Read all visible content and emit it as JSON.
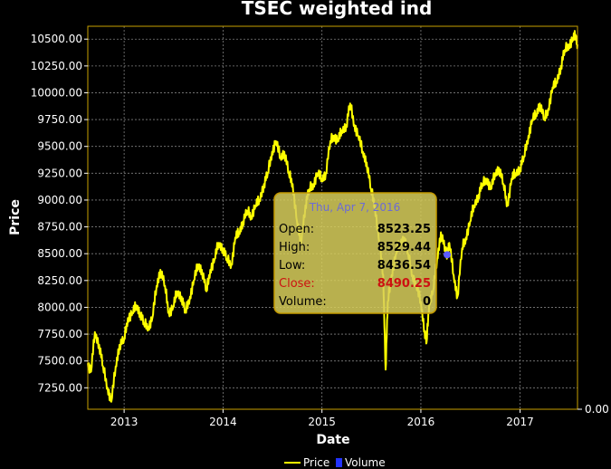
{
  "chart_data": {
    "type": "line",
    "title": "TSEC weighted ind",
    "xlabel": "Date",
    "ylabel": "Price",
    "secondary_axis_tick": "0.00",
    "x_ticks": [
      "2013",
      "2014",
      "2015",
      "2016",
      "2017"
    ],
    "y_ticks": [
      "7250.00",
      "7500.00",
      "7750.00",
      "8000.00",
      "8250.00",
      "8500.00",
      "8750.00",
      "9000.00",
      "9250.00",
      "9500.00",
      "9750.00",
      "10000.00",
      "10250.00",
      "10500.00"
    ],
    "xlim": [
      "2012-08-20",
      "2017-08-01"
    ],
    "ylim": [
      7050,
      10620
    ],
    "grid": true,
    "legend": "bottom",
    "series": [
      {
        "name": "Price",
        "color": "#ffff00",
        "points": [
          [
            "2012-08-20",
            7480
          ],
          [
            "2012-09-01",
            7400
          ],
          [
            "2012-09-15",
            7770
          ],
          [
            "2012-10-01",
            7650
          ],
          [
            "2012-10-15",
            7450
          ],
          [
            "2012-11-01",
            7250
          ],
          [
            "2012-11-15",
            7120
          ],
          [
            "2012-12-01",
            7450
          ],
          [
            "2012-12-15",
            7650
          ],
          [
            "2013-01-01",
            7700
          ],
          [
            "2013-01-15",
            7900
          ],
          [
            "2013-02-01",
            7950
          ],
          [
            "2013-02-15",
            8020
          ],
          [
            "2013-03-01",
            7950
          ],
          [
            "2013-03-15",
            7850
          ],
          [
            "2013-04-01",
            7820
          ],
          [
            "2013-04-15",
            7900
          ],
          [
            "2013-05-01",
            8200
          ],
          [
            "2013-05-15",
            8350
          ],
          [
            "2013-06-01",
            8200
          ],
          [
            "2013-06-15",
            7950
          ],
          [
            "2013-07-01",
            8000
          ],
          [
            "2013-07-15",
            8150
          ],
          [
            "2013-08-01",
            8100
          ],
          [
            "2013-08-15",
            7950
          ],
          [
            "2013-09-01",
            8100
          ],
          [
            "2013-09-15",
            8250
          ],
          [
            "2013-10-01",
            8400
          ],
          [
            "2013-10-15",
            8350
          ],
          [
            "2013-11-01",
            8150
          ],
          [
            "2013-11-15",
            8350
          ],
          [
            "2013-12-01",
            8450
          ],
          [
            "2013-12-15",
            8600
          ],
          [
            "2014-01-01",
            8550
          ],
          [
            "2014-01-15",
            8450
          ],
          [
            "2014-02-01",
            8400
          ],
          [
            "2014-02-15",
            8650
          ],
          [
            "2014-03-01",
            8700
          ],
          [
            "2014-03-15",
            8800
          ],
          [
            "2014-04-01",
            8900
          ],
          [
            "2014-04-15",
            8850
          ],
          [
            "2014-05-01",
            8950
          ],
          [
            "2014-05-15",
            9000
          ],
          [
            "2014-06-01",
            9150
          ],
          [
            "2014-06-15",
            9250
          ],
          [
            "2014-07-01",
            9450
          ],
          [
            "2014-07-15",
            9550
          ],
          [
            "2014-08-01",
            9400
          ],
          [
            "2014-08-15",
            9450
          ],
          [
            "2014-09-01",
            9250
          ],
          [
            "2014-09-15",
            9150
          ],
          [
            "2014-10-01",
            8800
          ],
          [
            "2014-10-15",
            8600
          ],
          [
            "2014-11-01",
            8950
          ],
          [
            "2014-11-15",
            9100
          ],
          [
            "2014-12-01",
            9150
          ],
          [
            "2014-12-15",
            9250
          ],
          [
            "2015-01-01",
            9200
          ],
          [
            "2015-01-15",
            9250
          ],
          [
            "2015-02-01",
            9550
          ],
          [
            "2015-02-15",
            9600
          ],
          [
            "2015-03-01",
            9550
          ],
          [
            "2015-03-15",
            9650
          ],
          [
            "2015-04-01",
            9700
          ],
          [
            "2015-04-15",
            9900
          ],
          [
            "2015-05-01",
            9700
          ],
          [
            "2015-05-15",
            9600
          ],
          [
            "2015-06-01",
            9450
          ],
          [
            "2015-06-15",
            9350
          ],
          [
            "2015-07-01",
            9100
          ],
          [
            "2015-07-15",
            8950
          ],
          [
            "2015-08-01",
            8600
          ],
          [
            "2015-08-15",
            8300
          ],
          [
            "2015-08-24",
            7420
          ],
          [
            "2015-09-01",
            8050
          ],
          [
            "2015-09-15",
            8300
          ],
          [
            "2015-10-01",
            8500
          ],
          [
            "2015-10-15",
            8600
          ],
          [
            "2015-11-01",
            8650
          ],
          [
            "2015-11-15",
            8500
          ],
          [
            "2015-12-01",
            8300
          ],
          [
            "2015-12-15",
            8200
          ],
          [
            "2016-01-01",
            8050
          ],
          [
            "2016-01-15",
            7780
          ],
          [
            "2016-01-22",
            7670
          ],
          [
            "2016-02-01",
            8050
          ],
          [
            "2016-02-15",
            8150
          ],
          [
            "2016-03-01",
            8450
          ],
          [
            "2016-03-15",
            8700
          ],
          [
            "2016-04-01",
            8520
          ],
          [
            "2016-04-07",
            8490
          ],
          [
            "2016-04-15",
            8600
          ],
          [
            "2016-05-01",
            8300
          ],
          [
            "2016-05-15",
            8100
          ],
          [
            "2016-06-01",
            8550
          ],
          [
            "2016-06-15",
            8650
          ],
          [
            "2016-07-01",
            8800
          ],
          [
            "2016-07-15",
            8950
          ],
          [
            "2016-08-01",
            9050
          ],
          [
            "2016-08-15",
            9150
          ],
          [
            "2016-09-01",
            9200
          ],
          [
            "2016-09-15",
            9100
          ],
          [
            "2016-10-01",
            9250
          ],
          [
            "2016-10-15",
            9300
          ],
          [
            "2016-11-01",
            9150
          ],
          [
            "2016-11-15",
            8950
          ],
          [
            "2016-12-01",
            9200
          ],
          [
            "2016-12-15",
            9250
          ],
          [
            "2017-01-01",
            9300
          ],
          [
            "2017-01-15",
            9400
          ],
          [
            "2017-02-01",
            9600
          ],
          [
            "2017-02-15",
            9750
          ],
          [
            "2017-03-01",
            9800
          ],
          [
            "2017-03-15",
            9900
          ],
          [
            "2017-04-01",
            9750
          ],
          [
            "2017-04-15",
            9850
          ],
          [
            "2017-05-01",
            10050
          ],
          [
            "2017-05-15",
            10100
          ],
          [
            "2017-06-01",
            10250
          ],
          [
            "2017-06-15",
            10400
          ],
          [
            "2017-07-01",
            10450
          ],
          [
            "2017-07-15",
            10500
          ],
          [
            "2017-07-25",
            10540
          ],
          [
            "2017-08-01",
            10450
          ]
        ]
      },
      {
        "name": "Volume",
        "color": "#2233ff",
        "points": []
      }
    ],
    "crosshair_point": [
      "2016-04-07",
      8490.25
    ]
  },
  "tooltip": {
    "date": "Thu, Apr 7, 2016",
    "rows": [
      {
        "label": "Open:",
        "value": "8523.25"
      },
      {
        "label": "High:",
        "value": "8529.44"
      },
      {
        "label": "Low:",
        "value": "8436.54"
      },
      {
        "label": "Close:",
        "value": "8490.25"
      },
      {
        "label": "Volume:",
        "value": "0"
      }
    ],
    "close_color": "#cc1111"
  }
}
